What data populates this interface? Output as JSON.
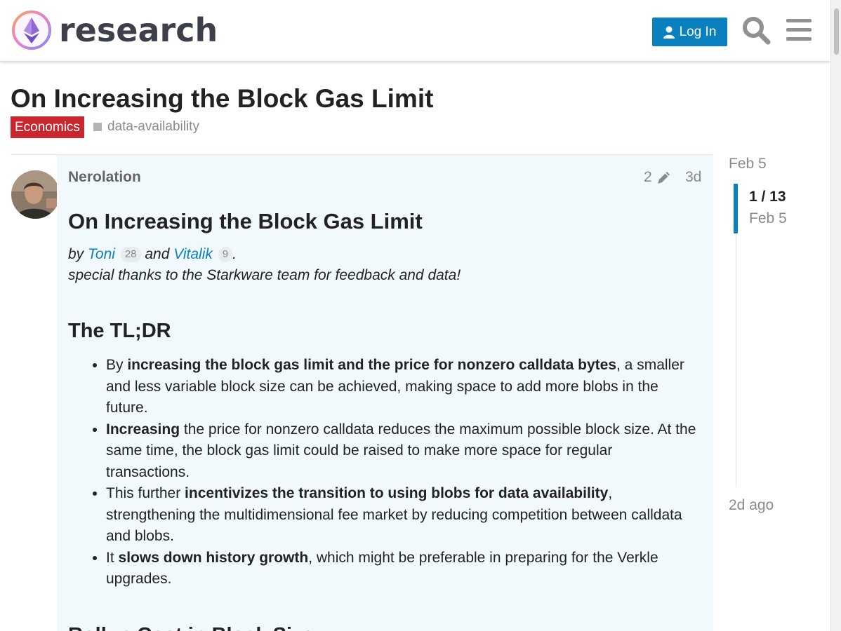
{
  "header": {
    "logo_text": "research",
    "login_label": "Log In"
  },
  "topic": {
    "title": "On Increasing the Block Gas Limit",
    "category": "Economics",
    "tag": "data-availability"
  },
  "post": {
    "username": "Nerolation",
    "edit_count": "2",
    "age": "3d",
    "heading": "On Increasing the Block Gas Limit",
    "byline": {
      "by": "by",
      "author1": "Toni",
      "author1_count": "28",
      "and": "and",
      "author2": "Vitalik",
      "author2_count": "9",
      "end": "."
    },
    "thanks": "special thanks to the Starkware team for feedback and data!",
    "tldr_heading": "The TL;DR",
    "bullets": [
      {
        "pre": "By ",
        "bold": "increasing the block gas limit and the price for nonzero calldata bytes",
        "post": ", a smaller and less variable block size can be achieved, making space to add more blobs in the future."
      },
      {
        "pre": "",
        "bold": "Increasing",
        "post": " the price for nonzero calldata reduces the maximum possible block size. At the same time, the block gas limit could be raised to make more space for regular transactions."
      },
      {
        "pre": "This further ",
        "bold": "incentivizes the transition to using blobs for data availability",
        "post": ", strengthening the multidimensional fee market by reducing competition between calldata and blobs."
      },
      {
        "pre": "It ",
        "bold": "slows down history growth",
        "post": ", which might be preferable in preparing for the Verkle upgrades."
      }
    ],
    "next_heading": "Rollup Cost in Block Size"
  },
  "timeline": {
    "top_date": "Feb 5",
    "position": "1 / 13",
    "position_date": "Feb 5",
    "bottom_label": "2d ago"
  },
  "colors": {
    "accent": "#0a80be",
    "category": "#c9262e",
    "post_bg": "#f1f9fd"
  }
}
